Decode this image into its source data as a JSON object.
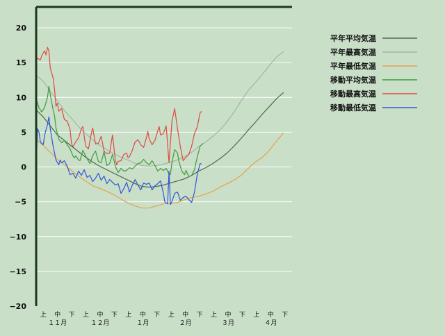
{
  "chart_data": {
    "type": "line",
    "ylim": [
      -20,
      23
    ],
    "yticks": [
      20,
      15,
      10,
      5,
      0,
      -5,
      -10,
      -15,
      -20
    ],
    "grid": true,
    "legend_position": "right",
    "colors": {
      "background": "#c9dfc8",
      "grid": "#ffffff",
      "axis": "#1a3a1a"
    },
    "x_dekads": [
      "上",
      "中",
      "下",
      "上",
      "中",
      "下",
      "上",
      "中",
      "下",
      "上",
      "中",
      "下",
      "上",
      "中",
      "下",
      "上",
      "中",
      "下"
    ],
    "x_months": [
      "１１月",
      "１２月",
      "１月",
      "２月",
      "３月",
      "４月"
    ],
    "x_days_total": 181,
    "series": [
      {
        "name": "平年平均気温",
        "color": "#4a6a4a",
        "points": [
          [
            0,
            8.2
          ],
          [
            5,
            7.2
          ],
          [
            10,
            5.9
          ],
          [
            15,
            4.6
          ],
          [
            20,
            3.8
          ],
          [
            25,
            3.0
          ],
          [
            30,
            2.2
          ],
          [
            35,
            1.4
          ],
          [
            40,
            0.7
          ],
          [
            45,
            0.1
          ],
          [
            50,
            -0.4
          ],
          [
            55,
            -0.9
          ],
          [
            60,
            -1.4
          ],
          [
            65,
            -1.9
          ],
          [
            70,
            -2.4
          ],
          [
            75,
            -2.8
          ],
          [
            80,
            -2.9
          ],
          [
            85,
            -2.8
          ],
          [
            90,
            -2.6
          ],
          [
            95,
            -2.3
          ],
          [
            100,
            -2.0
          ],
          [
            105,
            -1.7
          ],
          [
            110,
            -1.2
          ],
          [
            115,
            -0.6
          ],
          [
            120,
            -0.1
          ],
          [
            125,
            0.5
          ],
          [
            130,
            1.2
          ],
          [
            135,
            2.0
          ],
          [
            140,
            3.0
          ],
          [
            145,
            4.1
          ],
          [
            150,
            5.3
          ],
          [
            155,
            6.4
          ],
          [
            160,
            7.6
          ],
          [
            165,
            8.7
          ],
          [
            170,
            9.8
          ],
          [
            175,
            10.7
          ]
        ]
      },
      {
        "name": "平年最高気温",
        "color": "#a4b4a4",
        "points": [
          [
            0,
            13.2
          ],
          [
            5,
            12.3
          ],
          [
            10,
            10.9
          ],
          [
            15,
            9.5
          ],
          [
            20,
            8.1
          ],
          [
            25,
            7.0
          ],
          [
            30,
            5.8
          ],
          [
            35,
            4.8
          ],
          [
            40,
            3.9
          ],
          [
            45,
            3.1
          ],
          [
            50,
            2.5
          ],
          [
            55,
            1.9
          ],
          [
            60,
            1.4
          ],
          [
            65,
            1.0
          ],
          [
            70,
            0.5
          ],
          [
            75,
            0.2
          ],
          [
            80,
            0.1
          ],
          [
            85,
            0.2
          ],
          [
            90,
            0.4
          ],
          [
            95,
            0.7
          ],
          [
            100,
            1.0
          ],
          [
            105,
            1.5
          ],
          [
            110,
            2.1
          ],
          [
            115,
            2.9
          ],
          [
            120,
            3.6
          ],
          [
            125,
            4.4
          ],
          [
            130,
            5.3
          ],
          [
            135,
            6.5
          ],
          [
            140,
            7.9
          ],
          [
            145,
            9.5
          ],
          [
            150,
            11.0
          ],
          [
            155,
            12.1
          ],
          [
            160,
            13.3
          ],
          [
            165,
            14.6
          ],
          [
            170,
            15.8
          ],
          [
            175,
            16.6
          ]
        ]
      },
      {
        "name": "平年最低気温",
        "color": "#e3a24f",
        "points": [
          [
            0,
            4.0
          ],
          [
            5,
            3.1
          ],
          [
            10,
            2.1
          ],
          [
            15,
            1.1
          ],
          [
            20,
            0.3
          ],
          [
            25,
            -0.5
          ],
          [
            30,
            -1.3
          ],
          [
            35,
            -2.0
          ],
          [
            40,
            -2.7
          ],
          [
            45,
            -3.1
          ],
          [
            50,
            -3.5
          ],
          [
            55,
            -4.0
          ],
          [
            60,
            -4.6
          ],
          [
            65,
            -5.2
          ],
          [
            70,
            -5.6
          ],
          [
            75,
            -5.9
          ],
          [
            80,
            -5.9
          ],
          [
            85,
            -5.6
          ],
          [
            90,
            -5.3
          ],
          [
            95,
            -5.2
          ],
          [
            100,
            -5.1
          ],
          [
            105,
            -4.7
          ],
          [
            110,
            -4.4
          ],
          [
            115,
            -4.2
          ],
          [
            120,
            -3.9
          ],
          [
            125,
            -3.5
          ],
          [
            130,
            -2.9
          ],
          [
            135,
            -2.4
          ],
          [
            140,
            -1.9
          ],
          [
            145,
            -1.2
          ],
          [
            150,
            -0.2
          ],
          [
            155,
            0.7
          ],
          [
            160,
            1.4
          ],
          [
            165,
            2.4
          ],
          [
            170,
            3.7
          ],
          [
            175,
            4.9
          ]
        ]
      },
      {
        "name": "移動平均気温",
        "color": "#3c9c3c",
        "points": [
          [
            0,
            9.8
          ],
          [
            2,
            8.5
          ],
          [
            4,
            7.9
          ],
          [
            6,
            8.6
          ],
          [
            8,
            10.0
          ],
          [
            9,
            11.6
          ],
          [
            10,
            10.4
          ],
          [
            12,
            8.2
          ],
          [
            13,
            7.4
          ],
          [
            14,
            5.6
          ],
          [
            16,
            4.0
          ],
          [
            18,
            3.5
          ],
          [
            20,
            3.8
          ],
          [
            22,
            3.2
          ],
          [
            24,
            2.6
          ],
          [
            26,
            1.6
          ],
          [
            27,
            1.3
          ],
          [
            28,
            1.6
          ],
          [
            30,
            1.0
          ],
          [
            31,
            0.9
          ],
          [
            33,
            2.4
          ],
          [
            34,
            2.0
          ],
          [
            36,
            1.2
          ],
          [
            38,
            0.5
          ],
          [
            40,
            1.6
          ],
          [
            42,
            2.3
          ],
          [
            44,
            0.8
          ],
          [
            46,
            0.6
          ],
          [
            48,
            2.2
          ],
          [
            50,
            0.2
          ],
          [
            52,
            0.5
          ],
          [
            54,
            1.8
          ],
          [
            56,
            0.1
          ],
          [
            58,
            -0.8
          ],
          [
            60,
            -0.2
          ],
          [
            62,
            -0.6
          ],
          [
            64,
            -0.5
          ],
          [
            66,
            -0.1
          ],
          [
            68,
            -0.3
          ],
          [
            70,
            0.1
          ],
          [
            72,
            0.5
          ],
          [
            74,
            0.6
          ],
          [
            76,
            1.1
          ],
          [
            78,
            0.6
          ],
          [
            80,
            0.3
          ],
          [
            82,
            0.9
          ],
          [
            84,
            0.2
          ],
          [
            86,
            -0.6
          ],
          [
            88,
            -0.2
          ],
          [
            90,
            -0.5
          ],
          [
            92,
            -0.2
          ],
          [
            94,
            -1.0
          ],
          [
            95,
            -1.1
          ],
          [
            96,
            0.6
          ],
          [
            98,
            2.5
          ],
          [
            100,
            2.0
          ],
          [
            101,
            0.8
          ],
          [
            103,
            -0.6
          ],
          [
            105,
            -1.1
          ],
          [
            106,
            -0.5
          ],
          [
            108,
            -1.4
          ],
          [
            110,
            -1.2
          ],
          [
            112,
            -0.4
          ],
          [
            114,
            1.5
          ],
          [
            116,
            3.0
          ],
          [
            118,
            3.4
          ]
        ]
      },
      {
        "name": "移動最高気温",
        "color": "#dd4a42",
        "points": [
          [
            0,
            15.8
          ],
          [
            1,
            15.6
          ],
          [
            3,
            15.4
          ],
          [
            4,
            16.0
          ],
          [
            6,
            16.7
          ],
          [
            7,
            16.1
          ],
          [
            8,
            17.2
          ],
          [
            9,
            16.7
          ],
          [
            10,
            14.2
          ],
          [
            12,
            12.8
          ],
          [
            13,
            11.2
          ],
          [
            14,
            8.7
          ],
          [
            15,
            9.2
          ],
          [
            16,
            8.0
          ],
          [
            18,
            8.4
          ],
          [
            20,
            6.8
          ],
          [
            22,
            6.6
          ],
          [
            24,
            5.4
          ],
          [
            25,
            3.4
          ],
          [
            26,
            2.9
          ],
          [
            28,
            3.6
          ],
          [
            30,
            4.2
          ],
          [
            32,
            5.5
          ],
          [
            33,
            5.8
          ],
          [
            35,
            3.0
          ],
          [
            37,
            2.6
          ],
          [
            39,
            4.8
          ],
          [
            40,
            5.6
          ],
          [
            42,
            3.3
          ],
          [
            44,
            3.4
          ],
          [
            46,
            4.4
          ],
          [
            48,
            2.3
          ],
          [
            50,
            1.9
          ],
          [
            52,
            2.0
          ],
          [
            54,
            4.6
          ],
          [
            56,
            1.0
          ],
          [
            57,
            0.3
          ],
          [
            58,
            0.8
          ],
          [
            60,
            0.9
          ],
          [
            62,
            1.8
          ],
          [
            64,
            2.0
          ],
          [
            65,
            1.3
          ],
          [
            66,
            1.5
          ],
          [
            68,
            2.4
          ],
          [
            70,
            3.6
          ],
          [
            72,
            3.9
          ],
          [
            74,
            3.2
          ],
          [
            76,
            2.8
          ],
          [
            78,
            4.2
          ],
          [
            79,
            5.1
          ],
          [
            80,
            4.0
          ],
          [
            82,
            3.2
          ],
          [
            84,
            3.8
          ],
          [
            86,
            5.2
          ],
          [
            87,
            5.8
          ],
          [
            88,
            4.6
          ],
          [
            90,
            4.8
          ],
          [
            92,
            5.9
          ],
          [
            94,
            0.6
          ],
          [
            96,
            6.5
          ],
          [
            98,
            8.4
          ],
          [
            100,
            5.5
          ],
          [
            102,
            2.9
          ],
          [
            104,
            0.9
          ],
          [
            106,
            1.4
          ],
          [
            108,
            1.8
          ],
          [
            110,
            3.0
          ],
          [
            112,
            4.8
          ],
          [
            114,
            5.8
          ],
          [
            116,
            7.8
          ],
          [
            117,
            8.0
          ]
        ]
      },
      {
        "name": "移動最低気温",
        "color": "#3354d6",
        "points": [
          [
            0,
            0.0
          ],
          [
            1,
            5.5
          ],
          [
            2,
            5.0
          ],
          [
            3,
            3.6
          ],
          [
            5,
            3.2
          ],
          [
            6,
            4.6
          ],
          [
            8,
            6.1
          ],
          [
            9,
            7.2
          ],
          [
            10,
            5.5
          ],
          [
            12,
            3.0
          ],
          [
            14,
            1.0
          ],
          [
            16,
            0.3
          ],
          [
            17,
            1.0
          ],
          [
            18,
            0.6
          ],
          [
            20,
            0.9
          ],
          [
            22,
            0.1
          ],
          [
            24,
            -1.1
          ],
          [
            26,
            -0.9
          ],
          [
            28,
            -1.6
          ],
          [
            30,
            -0.6
          ],
          [
            32,
            -1.2
          ],
          [
            34,
            -0.4
          ],
          [
            36,
            -1.5
          ],
          [
            38,
            -1.2
          ],
          [
            40,
            -2.1
          ],
          [
            42,
            -1.6
          ],
          [
            44,
            -0.9
          ],
          [
            46,
            -1.9
          ],
          [
            48,
            -1.3
          ],
          [
            50,
            -2.4
          ],
          [
            52,
            -1.8
          ],
          [
            54,
            -2.2
          ],
          [
            56,
            -2.6
          ],
          [
            58,
            -2.4
          ],
          [
            60,
            -3.8
          ],
          [
            62,
            -3.1
          ],
          [
            64,
            -2.2
          ],
          [
            66,
            -3.6
          ],
          [
            68,
            -2.6
          ],
          [
            70,
            -1.8
          ],
          [
            72,
            -2.6
          ],
          [
            74,
            -3.3
          ],
          [
            76,
            -2.3
          ],
          [
            78,
            -2.5
          ],
          [
            80,
            -2.3
          ],
          [
            82,
            -3.3
          ],
          [
            84,
            -2.7
          ],
          [
            86,
            -2.4
          ],
          [
            88,
            -2.0
          ],
          [
            90,
            -3.8
          ],
          [
            91,
            -5.0
          ],
          [
            93,
            -5.3
          ],
          [
            94,
            -0.6
          ],
          [
            95,
            -5.4
          ],
          [
            96,
            -5.0
          ],
          [
            98,
            -3.8
          ],
          [
            100,
            -3.6
          ],
          [
            102,
            -4.8
          ],
          [
            104,
            -4.4
          ],
          [
            106,
            -4.2
          ],
          [
            108,
            -4.7
          ],
          [
            110,
            -5.1
          ],
          [
            112,
            -3.6
          ],
          [
            114,
            -1.0
          ],
          [
            116,
            0.5
          ],
          [
            117,
            0.4
          ]
        ]
      }
    ]
  }
}
